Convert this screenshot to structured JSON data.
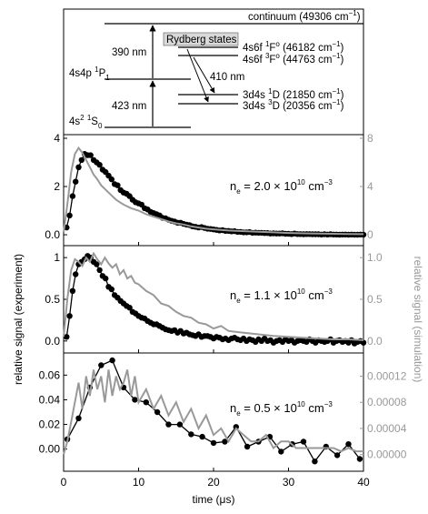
{
  "colors": {
    "experiment": "#000000",
    "simulation": "#999999",
    "rydberg_box": "#d9d9d9"
  },
  "diagram": {
    "levels": [
      {
        "id": "ground",
        "label": "4s",
        "sup": "2",
        "after_sup": " ",
        "term_sup": "1",
        "term": "S",
        "term_sub": "0"
      },
      {
        "id": "p1",
        "label": "4s4p ",
        "term_sup": "1",
        "term": "P",
        "term_sub": "1"
      },
      {
        "id": "continuum",
        "text": "continuum (49306 cm",
        "unit_sup": "−1",
        "close": ")"
      },
      {
        "id": "f1",
        "label": "4s6f ",
        "term_sup": "1",
        "term": "F",
        "term_sup2": "o",
        "energy": " (46182 cm",
        "unit_sup": "−1",
        "close": ")"
      },
      {
        "id": "f3",
        "label": "4s6f ",
        "term_sup": "3",
        "term": "F",
        "term_sup2": "o",
        "energy": " (44763 cm",
        "unit_sup": "−1",
        "close": ")"
      },
      {
        "id": "d1",
        "label": "3d4s ",
        "term_sup": "1",
        "term": "D",
        "energy": " (21850 cm",
        "unit_sup": "−1",
        "close": ")"
      },
      {
        "id": "d3",
        "label": "3d4s ",
        "term_sup": "3",
        "term": "D",
        "energy": " (20356 cm",
        "unit_sup": "−1",
        "close": ")"
      }
    ],
    "lasers": {
      "first": "423 nm",
      "second": "390 nm",
      "decay": "410 nm"
    },
    "rydberg_label": "Rydberg states"
  },
  "chart_data": [
    {
      "type": "line",
      "panel": "top",
      "annotation": {
        "base": "n",
        "sub": "e",
        "text": " = 2.0 × 10",
        "exp": "10",
        "unit": " cm",
        "unit_exp": "−3"
      },
      "xlim": [
        0,
        40
      ],
      "ylim": [
        -0.3,
        4.0
      ],
      "ylim_right": [
        -0.6,
        8.0
      ],
      "yticks": [
        0,
        2,
        4
      ],
      "yticks_right": [
        0,
        4,
        8
      ],
      "yticklabels_right": [
        "0",
        "4",
        "8"
      ],
      "series": [
        {
          "role": "experiment",
          "axis": "left",
          "x": [
            0.4,
            0.8,
            1.2,
            1.6,
            2.0,
            2.4,
            2.8,
            3.2,
            3.6,
            4.0,
            4.4,
            4.8,
            5.2,
            5.6,
            6.0,
            6.4,
            6.8,
            7.2,
            7.6,
            8.0,
            8.4,
            8.8,
            9.2,
            9.6,
            10.0,
            10.4,
            10.8,
            11.2,
            11.6,
            12.0,
            12.4,
            12.8,
            13.2,
            13.6,
            14.0,
            14.4,
            14.8,
            15.2,
            15.6,
            16.0,
            16.4,
            16.8,
            17.2,
            17.6,
            18.0,
            18.4,
            18.8,
            19.2,
            19.6,
            20.0,
            20.4,
            20.8,
            21.2,
            21.6,
            22.0,
            22.4,
            22.8,
            23.2,
            23.6,
            24.0,
            24.4,
            24.8,
            25.2,
            25.6,
            26.0,
            26.4,
            26.8,
            27.2,
            27.6,
            28.0,
            28.4,
            28.8,
            29.2,
            29.6,
            30.0,
            30.4,
            30.8,
            31.2,
            31.6,
            32.0,
            32.4,
            32.8,
            33.2,
            33.6,
            34.0,
            34.4,
            34.8,
            35.2,
            35.6,
            36.0,
            36.4,
            36.8,
            37.2,
            37.6,
            38.0,
            38.4,
            38.8,
            39.2,
            39.6,
            40.0
          ],
          "y": [
            0.3,
            0.8,
            1.6,
            2.2,
            2.8,
            3.1,
            3.35,
            3.3,
            3.3,
            3.1,
            3.0,
            2.9,
            2.7,
            2.6,
            2.45,
            2.3,
            2.1,
            2.05,
            1.85,
            1.75,
            1.7,
            1.6,
            1.45,
            1.35,
            1.3,
            1.25,
            1.1,
            1.05,
            0.95,
            0.9,
            0.85,
            0.8,
            0.7,
            0.68,
            0.62,
            0.58,
            0.55,
            0.5,
            0.5,
            0.45,
            0.42,
            0.4,
            0.35,
            0.33,
            0.3,
            0.32,
            0.28,
            0.25,
            0.24,
            0.22,
            0.2,
            0.18,
            0.19,
            0.16,
            0.16,
            0.14,
            0.15,
            0.12,
            0.12,
            0.1,
            0.1,
            0.11,
            0.08,
            0.09,
            0.08,
            0.08,
            0.07,
            0.07,
            0.05,
            0.06,
            0.05,
            0.05,
            0.06,
            0.04,
            0.04,
            0.03,
            0.05,
            0.03,
            0.03,
            0.02,
            0.03,
            0.03,
            0.02,
            0.02,
            0.02,
            0.01,
            0.02,
            0.01,
            0.02,
            0.01,
            0.01,
            0.0,
            0.01,
            0.01,
            0.0,
            0.01,
            0.0,
            0.0,
            0.01,
            0.0
          ]
        },
        {
          "role": "simulation",
          "axis": "right",
          "x": [
            0.0,
            0.5,
            1.0,
            1.5,
            2.0,
            2.5,
            3.0,
            3.5,
            4.0,
            4.5,
            5.0,
            5.5,
            6.0,
            6.5,
            7.0,
            7.5,
            8.0,
            9.0,
            10.0,
            11.0,
            12.0,
            13.0,
            14.0,
            15.0,
            16.0,
            17.0,
            18.0,
            19.0,
            20.0,
            22.0,
            24.0,
            26.0,
            28.0,
            30.0,
            32.0,
            34.0,
            36.0,
            38.0,
            40.0
          ],
          "y": [
            0.2,
            2.5,
            5.2,
            6.7,
            7.2,
            6.8,
            6.2,
            5.6,
            5.0,
            4.6,
            4.1,
            3.8,
            3.5,
            3.2,
            2.9,
            2.7,
            2.5,
            2.2,
            2.0,
            1.7,
            1.5,
            1.3,
            1.1,
            0.95,
            0.85,
            0.7,
            0.6,
            0.5,
            0.45,
            0.35,
            0.3,
            0.25,
            0.2,
            0.15,
            0.12,
            0.1,
            0.08,
            0.06,
            0.05
          ]
        }
      ]
    },
    {
      "type": "line",
      "panel": "middle",
      "annotation": {
        "base": "n",
        "sub": "e",
        "text": " = 1.1 × 10",
        "exp": "10",
        "unit": " cm",
        "unit_exp": "−3"
      },
      "xlim": [
        0,
        40
      ],
      "ylim": [
        -0.1,
        1.1
      ],
      "ylim_right": [
        -0.1,
        1.1
      ],
      "yticks": [
        0.0,
        0.5,
        1.0
      ],
      "yticks_right": [
        0.0,
        0.5,
        1.0
      ],
      "yticklabels_right": [
        "0.0",
        "0.5",
        "1.0"
      ],
      "series": [
        {
          "role": "experiment",
          "axis": "left",
          "x": [
            0.4,
            0.8,
            1.2,
            1.6,
            2.0,
            2.4,
            2.8,
            3.2,
            3.6,
            4.0,
            4.4,
            4.8,
            5.2,
            5.6,
            6.0,
            6.4,
            6.8,
            7.2,
            7.6,
            8.0,
            8.4,
            8.8,
            9.2,
            9.6,
            10.0,
            10.4,
            10.8,
            11.2,
            11.6,
            12.0,
            12.4,
            12.8,
            13.2,
            13.6,
            14.0,
            14.4,
            14.8,
            15.2,
            15.6,
            16.0,
            16.4,
            16.8,
            17.2,
            17.6,
            18.0,
            18.4,
            18.8,
            19.2,
            19.6,
            20.0,
            20.4,
            20.8,
            21.2,
            21.6,
            22.0,
            22.4,
            22.8,
            23.2,
            23.6,
            24.0,
            24.4,
            24.8,
            25.2,
            25.6,
            26.0,
            26.4,
            26.8,
            27.2,
            27.6,
            28.0,
            28.4,
            28.8,
            29.2,
            29.6,
            30.0,
            30.4,
            30.8,
            31.2,
            31.6,
            32.0,
            32.4,
            32.8,
            33.2,
            33.6,
            34.0,
            34.4,
            34.8,
            35.2,
            35.6,
            36.0,
            36.4,
            36.8,
            37.2,
            37.6,
            38.0,
            38.4,
            38.8,
            39.2,
            39.6,
            40.0
          ],
          "y": [
            0.05,
            0.3,
            0.6,
            0.8,
            0.92,
            0.95,
            0.98,
            1.02,
            1.0,
            0.95,
            0.92,
            0.85,
            0.78,
            0.75,
            0.65,
            0.62,
            0.55,
            0.52,
            0.48,
            0.45,
            0.42,
            0.4,
            0.35,
            0.33,
            0.3,
            0.28,
            0.27,
            0.24,
            0.22,
            0.2,
            0.2,
            0.18,
            0.16,
            0.14,
            0.13,
            0.12,
            0.13,
            0.1,
            0.12,
            0.09,
            0.1,
            0.08,
            0.07,
            0.06,
            0.08,
            0.05,
            0.06,
            0.06,
            0.05,
            0.03,
            0.05,
            0.04,
            0.02,
            0.03,
            0.01,
            0.03,
            0.04,
            0.02,
            0.01,
            0.03,
            0.0,
            0.02,
            0.01,
            -0.01,
            0.02,
            0.0,
            0.03,
            0.0,
            0.01,
            -0.02,
            0.0,
            0.01,
            -0.01,
            0.02,
            0.0,
            0.01,
            -0.02,
            0.0,
            0.01,
            0.0,
            -0.01,
            0.02,
            0.0,
            -0.02,
            0.01,
            0.0,
            -0.01,
            0.0,
            0.02,
            -0.02,
            0.0,
            0.01,
            -0.01,
            0.0,
            -0.02,
            0.01,
            -0.03,
            -0.01,
            0.0,
            -0.02
          ]
        },
        {
          "role": "simulation",
          "axis": "right",
          "x": [
            0.0,
            0.5,
            1.0,
            1.5,
            2.0,
            2.5,
            3.0,
            3.5,
            4.0,
            4.5,
            5.0,
            5.5,
            6.0,
            6.5,
            7.0,
            7.5,
            8.0,
            8.5,
            9.0,
            9.5,
            10.0,
            11.0,
            12.0,
            13.0,
            14.0,
            15.0,
            16.0,
            17.0,
            18.0,
            19.0,
            20.0,
            21.0,
            22.0,
            24.0,
            26.0,
            28.0,
            30.0,
            32.0,
            34.0,
            36.0,
            38.0,
            40.0
          ],
          "y": [
            0.05,
            0.5,
            0.85,
            0.98,
            0.95,
            0.9,
            1.0,
            0.95,
            1.05,
            0.98,
            0.92,
            1.0,
            0.93,
            0.88,
            0.92,
            0.8,
            0.85,
            0.75,
            0.78,
            0.7,
            0.68,
            0.6,
            0.55,
            0.45,
            0.42,
            0.35,
            0.3,
            0.28,
            0.22,
            0.2,
            0.15,
            0.18,
            0.12,
            0.1,
            0.08,
            0.06,
            0.05,
            0.04,
            0.03,
            0.02,
            0.02,
            0.01
          ]
        }
      ]
    },
    {
      "type": "line",
      "panel": "bottom",
      "annotation": {
        "base": "n",
        "sub": "e",
        "text": " = 0.5 × 10",
        "exp": "10",
        "unit": " cm",
        "unit_exp": "−3"
      },
      "xlim": [
        0,
        40
      ],
      "ylim": [
        -0.015,
        0.075
      ],
      "ylim_right": [
        -2e-05,
        0.00015
      ],
      "yticks": [
        0.0,
        0.02,
        0.04,
        0.06
      ],
      "yticklabels": [
        "0.00",
        "0.02",
        "0.04",
        "0.06"
      ],
      "yticks_right": [
        0.0,
        4e-05,
        8e-05,
        0.00012
      ],
      "yticklabels_right": [
        "0.00000",
        "0.00004",
        "0.00008",
        "0.00012"
      ],
      "xticks": [
        0,
        10,
        20,
        30,
        40
      ],
      "xlabel": "time (μs)",
      "series": [
        {
          "role": "experiment",
          "axis": "left",
          "x": [
            0.5,
            2.0,
            3.5,
            5.0,
            6.5,
            8.0,
            9.5,
            11.0,
            12.5,
            14.0,
            15.5,
            17.0,
            18.5,
            20.0,
            21.5,
            23.0,
            24.5,
            26.0,
            27.5,
            29.0,
            30.5,
            32.0,
            33.5,
            35.0,
            36.5,
            38.0,
            39.5
          ],
          "y": [
            0.008,
            0.025,
            0.05,
            0.068,
            0.072,
            0.05,
            0.04,
            0.038,
            0.03,
            0.02,
            0.02,
            0.012,
            0.01,
            0.005,
            0.006,
            0.018,
            0.002,
            0.006,
            0.01,
            -0.002,
            0.004,
            0.006,
            -0.01,
            0.002,
            -0.005,
            0.004,
            -0.008
          ]
        },
        {
          "role": "simulation",
          "axis": "right",
          "x": [
            0.0,
            0.5,
            1.0,
            1.5,
            2.0,
            2.5,
            3.0,
            3.5,
            4.0,
            4.5,
            5.0,
            5.5,
            6.0,
            6.5,
            7.0,
            7.5,
            8.0,
            8.5,
            9.0,
            9.5,
            10.0,
            11.0,
            12.0,
            13.0,
            14.0,
            15.0,
            16.0,
            17.0,
            18.0,
            19.0,
            20.0,
            21.0,
            22.0,
            23.0,
            24.0,
            25.0,
            26.0,
            27.0,
            28.0,
            29.0,
            30.0,
            31.0,
            32.0,
            33.0,
            34.0,
            35.0,
            36.0,
            37.0,
            38.0,
            39.0,
            40.0
          ],
          "y": [
            0.0,
            2e-05,
            5e-05,
            8e-05,
            0.00011,
            7e-05,
            0.00012,
            9e-05,
            0.00013,
            0.0001,
            0.00012,
            8e-05,
            0.00013,
            9e-05,
            0.00012,
            0.0001,
            0.00011,
            0.00013,
            9e-05,
            0.00012,
            8e-05,
            0.0001,
            7e-05,
            9e-05,
            6e-05,
            8e-05,
            5e-05,
            7e-05,
            4e-05,
            6e-05,
            3e-05,
            4e-05,
            2e-05,
            4e-05,
            3e-05,
            2e-05,
            2e-05,
            3e-05,
            1e-05,
            2e-05,
            2e-05,
            1e-05,
            1e-05,
            1e-05,
            1e-05,
            1e-05,
            1e-05,
            5e-06,
            1e-05,
            5e-06,
            5e-06
          ]
        }
      ]
    }
  ],
  "axes": {
    "ylabel_left": "relative signal (experiment)",
    "ylabel_right": "relative signal (simulation)"
  }
}
